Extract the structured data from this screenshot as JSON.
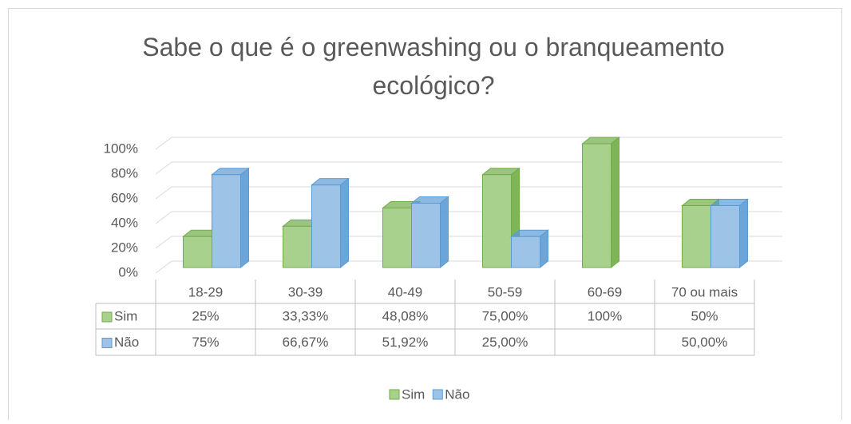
{
  "chart_data": {
    "type": "bar3d",
    "title": "Sabe o que é o greenwashing ou o branqueamento ecológico?",
    "categories": [
      "18-29",
      "30-39",
      "40-49",
      "50-59",
      "60-69",
      "70 ou mais"
    ],
    "series": [
      {
        "name": "Sim",
        "color": "#a9d18e",
        "border": "#70ad47",
        "values": [
          25,
          33.33,
          48.08,
          75,
          100,
          50
        ],
        "value_labels": [
          "25%",
          "33,33%",
          "48,08%",
          "75,00%",
          "100%",
          "50%"
        ]
      },
      {
        "name": "Não",
        "color": "#9dc3e6",
        "border": "#5b9bd5",
        "values": [
          75,
          66.67,
          51.92,
          25,
          null,
          50
        ],
        "value_labels": [
          "75%",
          "66,67%",
          "51,92%",
          "25,00%",
          null,
          "50,00%"
        ]
      }
    ],
    "ylim": [
      0,
      100
    ],
    "yticks": [
      {
        "value": 0,
        "label": "0%"
      },
      {
        "value": 20,
        "label": "20%"
      },
      {
        "value": 40,
        "label": "40%"
      },
      {
        "value": 60,
        "label": "60%"
      },
      {
        "value": 80,
        "label": "80%"
      },
      {
        "value": 100,
        "label": "100%"
      }
    ],
    "grid": true,
    "legend": "bottom",
    "data_table": true
  }
}
